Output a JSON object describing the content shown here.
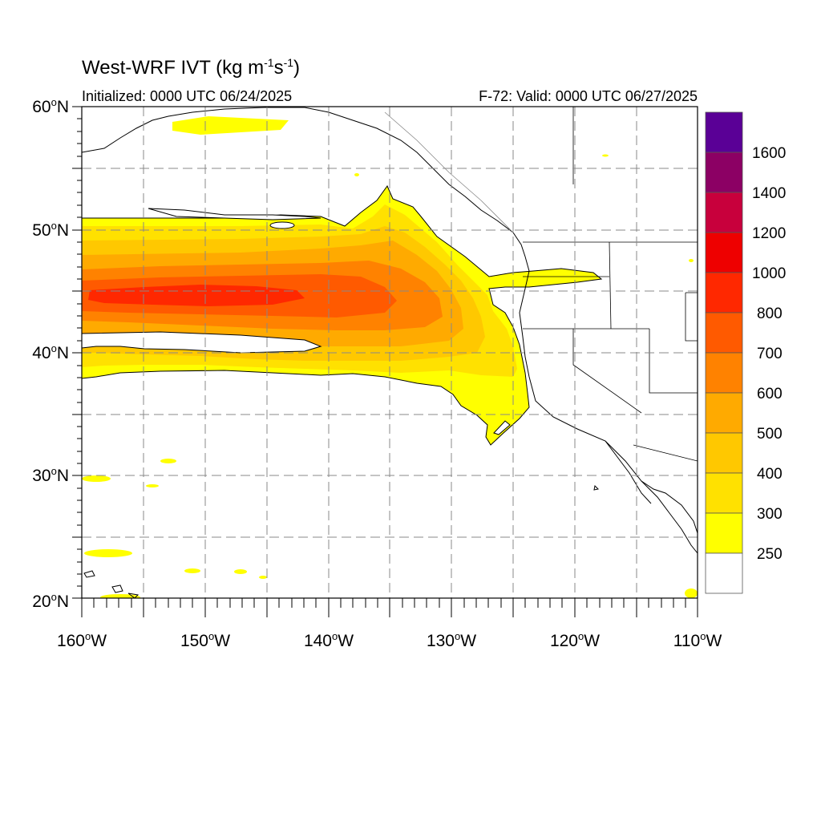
{
  "map": {
    "title_main": "West-WRF IVT (kg m",
    "title_sup1": "-1",
    "title_s": "s",
    "title_sup2": "-1",
    "title_close": ")",
    "init_text": "Initialized: 0000 UTC 06/24/2025",
    "valid_text": "F-72: Valid: 0000 UTC 06/27/2025",
    "projection": "cylindrical equidistant",
    "lon_range": [
      -160,
      -110
    ],
    "lat_range": [
      20,
      60
    ],
    "lat_ticks": [
      {
        "value": 60,
        "num": "60",
        "deg": "o",
        "hemi": "N"
      },
      {
        "value": 50,
        "num": "50",
        "deg": "o",
        "hemi": "N"
      },
      {
        "value": 40,
        "num": "40",
        "deg": "o",
        "hemi": "N"
      },
      {
        "value": 30,
        "num": "30",
        "deg": "o",
        "hemi": "N"
      },
      {
        "value": 20,
        "num": "20",
        "deg": "o",
        "hemi": "N"
      }
    ],
    "lon_ticks": [
      {
        "value": -160,
        "num": "160",
        "deg": "o",
        "hemi": "W"
      },
      {
        "value": -150,
        "num": "150",
        "deg": "o",
        "hemi": "W"
      },
      {
        "value": -140,
        "num": "140",
        "deg": "o",
        "hemi": "W"
      },
      {
        "value": -130,
        "num": "130",
        "deg": "o",
        "hemi": "W"
      },
      {
        "value": -120,
        "num": "120",
        "deg": "o",
        "hemi": "W"
      },
      {
        "value": -110,
        "num": "110",
        "deg": "o",
        "hemi": "W"
      }
    ],
    "grid": "dashed every 5 degrees",
    "feature": "atmospheric river IVT plume extending from central Pacific to Oregon/California coast, core ~800 kg m-1 s-1 near 45N 150W",
    "colors": {
      "ivt_250": "#ffff00",
      "ivt_300": "#ffe100",
      "ivt_400": "#ffc800",
      "ivt_500": "#ffaa00",
      "ivt_600": "#ff8200",
      "ivt_700": "#ff5a00",
      "ivt_800": "#ff2800",
      "ivt_1000": "#ee0000",
      "ivt_1200": "#c8003c",
      "ivt_1400": "#8c0064",
      "ivt_1600": "#5a0096"
    }
  },
  "colorbar": {
    "labels": [
      "1600",
      "1400",
      "1200",
      "1000",
      "800",
      "700",
      "600",
      "500",
      "400",
      "300",
      "250"
    ],
    "colors": [
      "#5a0096",
      "#8c0064",
      "#c8003c",
      "#ee0000",
      "#ff2800",
      "#ff5a00",
      "#ff8200",
      "#ffaa00",
      "#ffc800",
      "#ffe100",
      "#ffff00",
      "#ffffff"
    ]
  }
}
